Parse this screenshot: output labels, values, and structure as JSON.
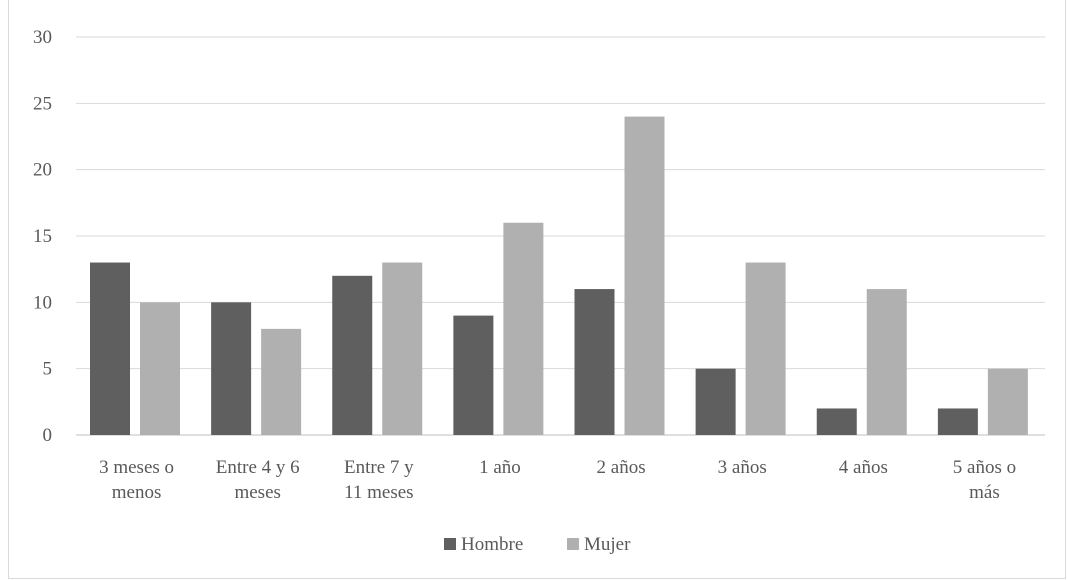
{
  "chart_data": {
    "type": "bar",
    "title": "",
    "xlabel": "",
    "ylabel": "",
    "ylim": [
      0,
      30
    ],
    "yticks": [
      0,
      5,
      10,
      15,
      20,
      25,
      30
    ],
    "grid": true,
    "legend_position": "bottom",
    "categories": [
      [
        "3 meses o",
        "menos"
      ],
      [
        "Entre 4 y 6",
        "meses"
      ],
      [
        "Entre 7 y",
        "11 meses"
      ],
      [
        "1 año"
      ],
      [
        "2 años"
      ],
      [
        "3 años"
      ],
      [
        "4 años"
      ],
      [
        "5 años o",
        "más"
      ]
    ],
    "series": [
      {
        "name": "Hombre",
        "color": "#5f5f5f",
        "values": [
          13,
          10,
          12,
          9,
          11,
          5,
          2,
          2
        ]
      },
      {
        "name": "Mujer",
        "color": "#b0b0b0",
        "values": [
          10,
          8,
          13,
          16,
          24,
          13,
          11,
          5
        ]
      }
    ]
  }
}
